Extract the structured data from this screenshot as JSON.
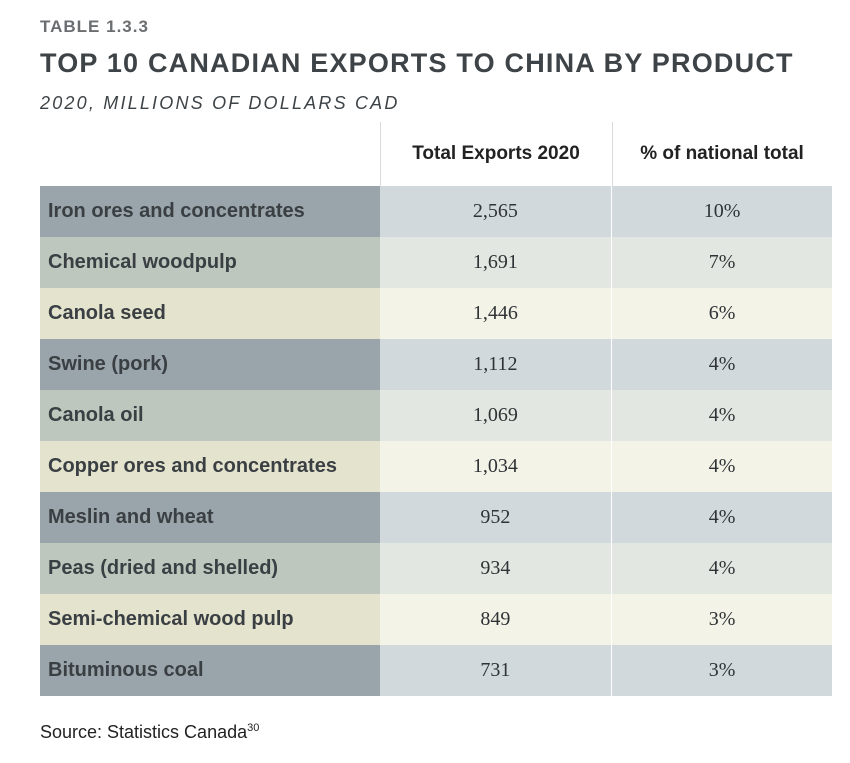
{
  "table_number": "TABLE 1.3.3",
  "title": "TOP 10 CANADIAN EXPORTS TO CHINA BY PRODUCT",
  "subtitle": "2020, MILLIONS OF DOLLARS CAD",
  "columns": {
    "exports": "Total Exports 2020",
    "percent": "% of national total"
  },
  "rows": [
    {
      "product": "Iron ores and concentrates",
      "exports": "2,565",
      "percent": "10%"
    },
    {
      "product": "Chemical woodpulp",
      "exports": "1,691",
      "percent": "7%"
    },
    {
      "product": "Canola seed",
      "exports": "1,446",
      "percent": "6%"
    },
    {
      "product": "Swine (pork)",
      "exports": "1,112",
      "percent": "4%"
    },
    {
      "product": "Canola oil",
      "exports": "1,069",
      "percent": "4%"
    },
    {
      "product": "Copper ores and concentrates",
      "exports": "1,034",
      "percent": "4%"
    },
    {
      "product": "Meslin and wheat",
      "exports": "952",
      "percent": "4%"
    },
    {
      "product": "Peas (dried and shelled)",
      "exports": "934",
      "percent": "4%"
    },
    {
      "product": "Semi-chemical wood pulp",
      "exports": "849",
      "percent": "3%"
    },
    {
      "product": "Bituminous coal",
      "exports": "731",
      "percent": "3%"
    }
  ],
  "source": {
    "text": "Source: Statistics Canada",
    "footnote": "30"
  },
  "colors": {
    "row_label_cycle": [
      "#99a5aa",
      "#bec7bd",
      "#e4e3cd"
    ],
    "row_value_cycle": [
      "#d2d9dc",
      "#e3e7e1",
      "#f4f3e8"
    ]
  }
}
